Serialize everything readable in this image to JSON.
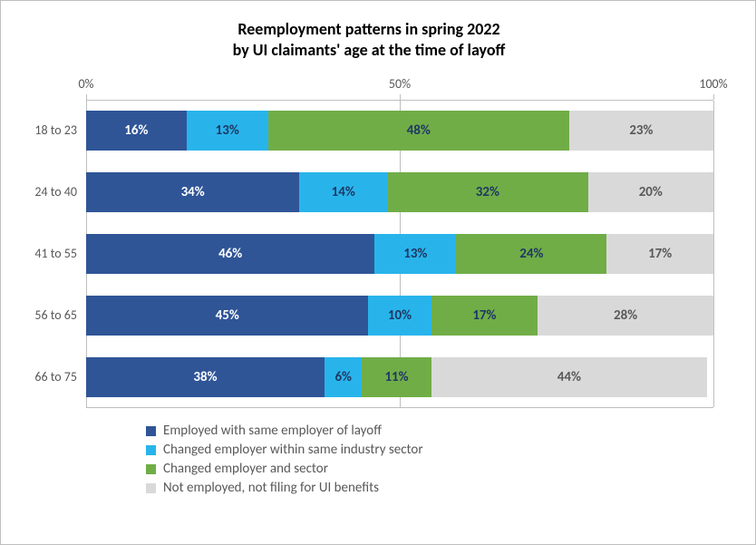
{
  "chart": {
    "type": "stacked-horizontal-bar",
    "title_line1": "Reemployment patterns in spring 2022",
    "title_line2": "by UI claimants' age at the time of layoff",
    "title_fontsize": 18,
    "title_color": "#000000",
    "background_color": "#ffffff",
    "grid_color": "#bfbfbf",
    "axis_label_color": "#595959",
    "axis_fontsize": 14,
    "value_fontsize": 15,
    "x_ticks": [
      {
        "pos": 0,
        "label": "0%"
      },
      {
        "pos": 50,
        "label": "50%"
      },
      {
        "pos": 100,
        "label": "100%"
      }
    ],
    "series": [
      {
        "key": "same_employer",
        "label": "Employed with same employer of layoff",
        "color": "#2f5597",
        "text_color": "#ffffff"
      },
      {
        "key": "same_sector",
        "label": "Changed employer within same industry sector",
        "color": "#28b4eb",
        "text_color": "#1f3864"
      },
      {
        "key": "changed_sector",
        "label": "Changed employer and sector",
        "color": "#70ad47",
        "text_color": "#1f3864"
      },
      {
        "key": "not_employed",
        "label": "Not employed, not filing for UI benefits",
        "color": "#d9d9d9",
        "text_color": "#595959"
      }
    ],
    "categories": [
      {
        "label": "18 to 23",
        "values": {
          "same_employer": 16,
          "same_sector": 13,
          "changed_sector": 48,
          "not_employed": 23
        }
      },
      {
        "label": "24 to 40",
        "values": {
          "same_employer": 34,
          "same_sector": 14,
          "changed_sector": 32,
          "not_employed": 20
        }
      },
      {
        "label": "41 to 55",
        "values": {
          "same_employer": 46,
          "same_sector": 13,
          "changed_sector": 24,
          "not_employed": 17
        }
      },
      {
        "label": "56 to 65",
        "values": {
          "same_employer": 45,
          "same_sector": 10,
          "changed_sector": 17,
          "not_employed": 28
        }
      },
      {
        "label": "66 to 75",
        "values": {
          "same_employer": 38,
          "same_sector": 6,
          "changed_sector": 11,
          "not_employed": 44
        }
      }
    ]
  }
}
